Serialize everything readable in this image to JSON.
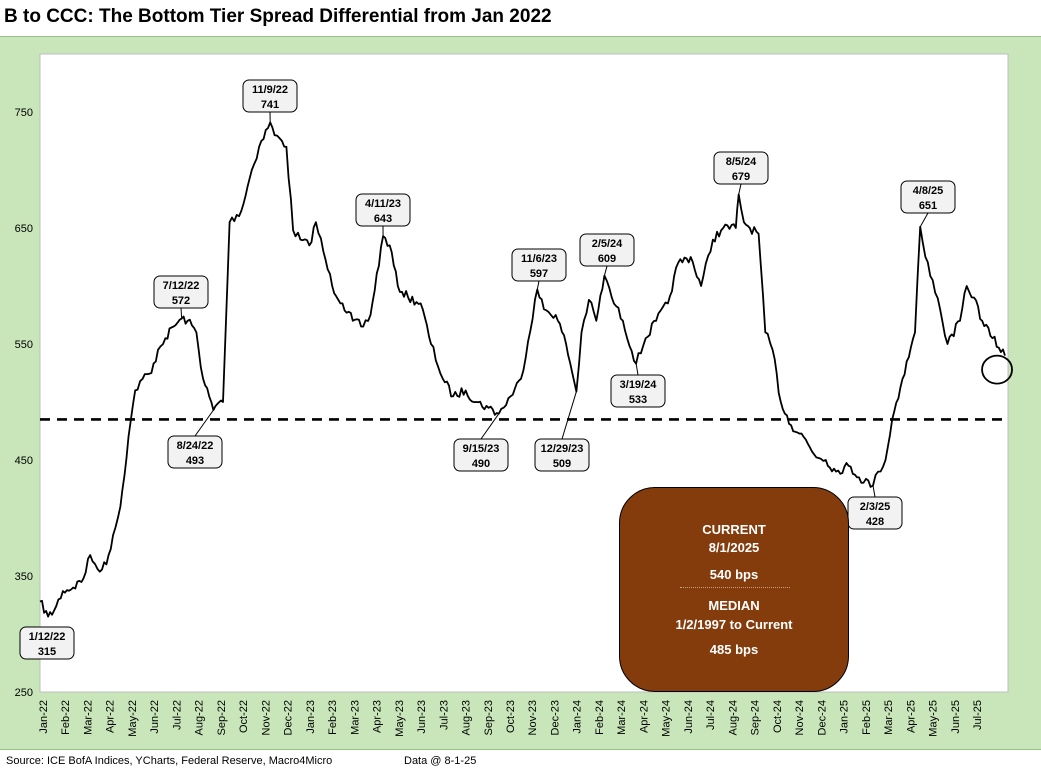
{
  "title": "B to CCC: The Bottom Tier Spread Differential from Jan 2022",
  "footer": {
    "source": "Source: ICE BofA Indices, YCharts, Federal Reserve, Macro4Micro",
    "data_date": "Data @ 8-1-25"
  },
  "info_box": {
    "current_label": "CURRENT",
    "current_date": "8/1/2025",
    "current_value": "540 bps",
    "median_label": "MEDIAN",
    "median_range": "1/2/1997 to Current",
    "median_value": "485 bps"
  },
  "chart_data": {
    "type": "line",
    "title": "B to CCC: The Bottom Tier Spread Differential from Jan 2022",
    "xlabel": "",
    "ylabel": "",
    "ylim": [
      250,
      800
    ],
    "yticks": [
      250,
      350,
      450,
      550,
      650,
      750
    ],
    "grid": false,
    "x_tick_labels": [
      "Jan-22",
      "Feb-22",
      "Mar-22",
      "Apr-22",
      "May-22",
      "Jun-22",
      "Jul-22",
      "Aug-22",
      "Sep-22",
      "Oct-22",
      "Nov-22",
      "Dec-22",
      "Jan-23",
      "Feb-23",
      "Mar-23",
      "Apr-23",
      "May-23",
      "Jun-23",
      "Jul-23",
      "Aug-23",
      "Sep-23",
      "Oct-23",
      "Nov-23",
      "Dec-23",
      "Jan-24",
      "Feb-24",
      "Mar-24",
      "Apr-24",
      "May-24",
      "Jun-24",
      "Jul-24",
      "Aug-24",
      "Sep-24",
      "Oct-24",
      "Nov-24",
      "Dec-24",
      "Jan-25",
      "Feb-25",
      "Mar-25",
      "Apr-25",
      "May-25",
      "Jun-25",
      "Jul-25"
    ],
    "median": 485,
    "series": [
      {
        "x": [
          "2022-01-01",
          "2022-01-12",
          "2022-01-20",
          "2022-02-01",
          "2022-02-15",
          "2022-03-01",
          "2022-03-10",
          "2022-03-20",
          "2022-04-01",
          "2022-04-10",
          "2022-04-20",
          "2022-05-01",
          "2022-05-10",
          "2022-05-20",
          "2022-06-01",
          "2022-06-10",
          "2022-06-20",
          "2022-07-01",
          "2022-07-12",
          "2022-07-20",
          "2022-08-01",
          "2022-08-10",
          "2022-08-24",
          "2022-09-01",
          "2022-09-06",
          "2022-09-15",
          "2022-10-01",
          "2022-10-15",
          "2022-10-25",
          "2022-11-09",
          "2022-11-15",
          "2022-11-25",
          "2022-12-01",
          "2022-12-10",
          "2022-12-20",
          "2023-01-01",
          "2023-01-10",
          "2023-01-20",
          "2023-02-01",
          "2023-02-15",
          "2023-03-01",
          "2023-03-15",
          "2023-03-25",
          "2023-04-11",
          "2023-04-20",
          "2023-05-01",
          "2023-05-15",
          "2023-06-01",
          "2023-06-15",
          "2023-07-01",
          "2023-07-15",
          "2023-08-01",
          "2023-08-15",
          "2023-09-01",
          "2023-09-15",
          "2023-10-01",
          "2023-10-15",
          "2023-11-06",
          "2023-11-15",
          "2023-12-01",
          "2023-12-15",
          "2023-12-29",
          "2024-01-05",
          "2024-01-15",
          "2024-01-25",
          "2024-02-05",
          "2024-02-15",
          "2024-03-01",
          "2024-03-19",
          "2024-04-01",
          "2024-04-15",
          "2024-05-01",
          "2024-05-15",
          "2024-06-01",
          "2024-06-15",
          "2024-07-01",
          "2024-07-15",
          "2024-08-01",
          "2024-08-05",
          "2024-08-12",
          "2024-08-20",
          "2024-09-01",
          "2024-09-10",
          "2024-09-20",
          "2024-10-01",
          "2024-10-15",
          "2024-11-01",
          "2024-11-15",
          "2024-12-01",
          "2024-12-15",
          "2025-01-01",
          "2025-01-15",
          "2025-02-03",
          "2025-02-10",
          "2025-02-20",
          "2025-03-01",
          "2025-03-15",
          "2025-04-01",
          "2025-04-08",
          "2025-04-15",
          "2025-04-25",
          "2025-05-05",
          "2025-05-15",
          "2025-06-01",
          "2025-06-10",
          "2025-06-20",
          "2025-07-01",
          "2025-07-15",
          "2025-08-01"
        ],
        "y": [
          328,
          315,
          320,
          337,
          340,
          348,
          368,
          356,
          360,
          385,
          410,
          470,
          510,
          520,
          525,
          545,
          555,
          565,
          572,
          570,
          560,
          520,
          493,
          500,
          500,
          655,
          665,
          700,
          720,
          741,
          730,
          725,
          720,
          648,
          640,
          635,
          655,
          630,
          600,
          585,
          570,
          565,
          575,
          643,
          635,
          600,
          590,
          585,
          550,
          520,
          505,
          510,
          500,
          495,
          490,
          505,
          520,
          597,
          580,
          575,
          550,
          509,
          560,
          588,
          570,
          609,
          590,
          570,
          533,
          555,
          570,
          585,
          620,
          625,
          600,
          640,
          650,
          650,
          679,
          655,
          650,
          645,
          560,
          545,
          500,
          480,
          470,
          455,
          450,
          440,
          445,
          435,
          428,
          440,
          450,
          485,
          520,
          560,
          651,
          625,
          605,
          580,
          550,
          570,
          600,
          590,
          570,
          555,
          540
        ]
      }
    ],
    "annotations": [
      {
        "text_date": "1/12/22",
        "text_value": "315",
        "x": "2022-01-12",
        "y": 315
      },
      {
        "text_date": "7/12/22",
        "text_value": "572",
        "x": "2022-07-12",
        "y": 572
      },
      {
        "text_date": "8/24/22",
        "text_value": "493",
        "x": "2022-08-24",
        "y": 493
      },
      {
        "text_date": "11/9/22",
        "text_value": "741",
        "x": "2022-11-09",
        "y": 741
      },
      {
        "text_date": "4/11/23",
        "text_value": "643",
        "x": "2023-04-11",
        "y": 643
      },
      {
        "text_date": "9/15/23",
        "text_value": "490",
        "x": "2023-09-15",
        "y": 490
      },
      {
        "text_date": "11/6/23",
        "text_value": "597",
        "x": "2023-11-06",
        "y": 597
      },
      {
        "text_date": "12/29/23",
        "text_value": "509",
        "x": "2023-12-29",
        "y": 509
      },
      {
        "text_date": "2/5/24",
        "text_value": "609",
        "x": "2024-02-05",
        "y": 609
      },
      {
        "text_date": "3/19/24",
        "text_value": "533",
        "x": "2024-03-19",
        "y": 533
      },
      {
        "text_date": "8/5/24",
        "text_value": "679",
        "x": "2024-08-05",
        "y": 679
      },
      {
        "text_date": "2/3/25",
        "text_value": "428",
        "x": "2025-02-03",
        "y": 428
      },
      {
        "text_date": "4/8/25",
        "text_value": "651",
        "x": "2025-04-08",
        "y": 651
      }
    ],
    "highlight_point": {
      "x": "2025-08-01",
      "y": 540
    }
  }
}
